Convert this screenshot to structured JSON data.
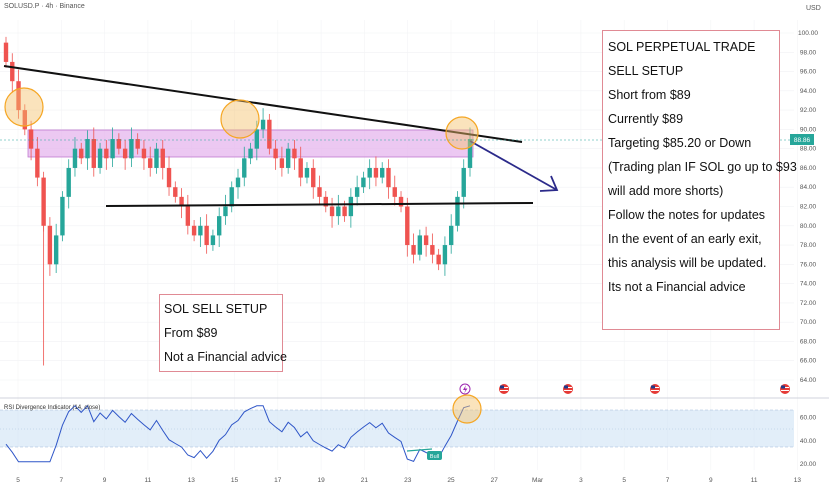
{
  "header": {
    "symbol": "SOLUSD.P · 4h · Binance",
    "currency": "USD"
  },
  "current_price_label": "88.86",
  "rsi_label": "RSI Divergence Indicator (14, close)",
  "bull_label": "Bull",
  "annotations": {
    "right": [
      "SOL PERPETUAL TRADE",
      "SELL SETUP",
      "Short from $89",
      "Currently $89",
      "Targeting $85.20 or Down",
      "(Trading plan IF SOL go up to $93",
      "will add more shorts)",
      "Follow the notes for updates",
      "In the event of an early exit,",
      "this analysis will be updated.",
      "Its not a Financial advice"
    ],
    "left": [
      "SOL SELL SETUP",
      "From $89",
      "Not a Financial advice"
    ]
  },
  "chart_data": {
    "type": "candlestick",
    "price_axis": {
      "ticks": [
        "100.00",
        "98.00",
        "96.00",
        "94.00",
        "92.00",
        "90.00",
        "88.00",
        "86.00",
        "84.00",
        "82.00",
        "80.00",
        "78.00",
        "76.00",
        "74.00",
        "72.00",
        "70.00",
        "68.00",
        "66.00",
        "64.00"
      ],
      "range": [
        63,
        101
      ]
    },
    "rsi_axis": {
      "ticks": [
        "60.00",
        "40.00",
        "20.00"
      ],
      "range": [
        15,
        75
      ]
    },
    "x_ticks": [
      "5",
      "7",
      "9",
      "11",
      "13",
      "15",
      "17",
      "19",
      "21",
      "23",
      "25",
      "27",
      "Mar",
      "3",
      "5",
      "7",
      "9",
      "11",
      "13"
    ],
    "close_path": [
      97,
      95,
      92,
      90,
      88,
      85,
      80,
      76,
      79,
      83,
      86,
      88,
      87,
      89,
      86,
      88,
      87,
      89,
      88,
      87,
      89,
      88,
      87,
      86,
      88,
      86,
      84,
      83,
      82,
      80,
      79,
      80,
      78,
      79,
      81,
      82,
      84,
      85,
      87,
      88,
      90,
      91,
      88,
      87,
      86,
      88,
      87,
      85,
      86,
      84,
      83,
      82,
      81,
      82,
      81,
      83,
      84,
      85,
      86,
      85,
      86,
      84,
      83,
      82,
      78,
      77,
      79,
      78,
      77,
      76,
      78,
      80,
      83,
      86,
      89
    ],
    "resistance_zone": [
      87.2,
      89.6
    ],
    "descending_trendline": [
      [
        0,
        96.8
      ],
      [
        90,
        88.7
      ]
    ],
    "support_line": 82.2,
    "projection_target": "85.20"
  },
  "icons": [
    "lightning-icon",
    "flag-icon-us",
    "flag-icon-us",
    "flag-icon-us",
    "flag-icon-us"
  ],
  "colors": {
    "up": "#26a69a",
    "down": "#ef5350",
    "zone": "#e6b6ee",
    "arrow": "#2b2a8a",
    "highlight": "#f5a623"
  }
}
